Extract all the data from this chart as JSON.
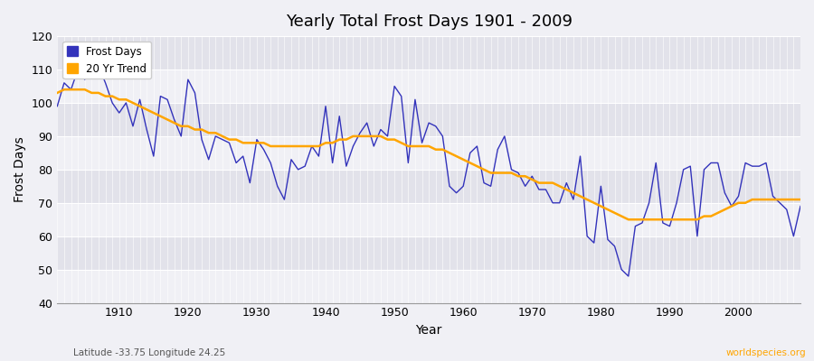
{
  "title": "Yearly Total Frost Days 1901 - 2009",
  "xlabel": "Year",
  "ylabel": "Frost Days",
  "ylim": [
    40,
    120
  ],
  "xlim": [
    1901,
    2009
  ],
  "yticks": [
    40,
    50,
    60,
    70,
    80,
    90,
    100,
    110,
    120
  ],
  "xticks": [
    1910,
    1920,
    1930,
    1940,
    1950,
    1960,
    1970,
    1980,
    1990,
    2000
  ],
  "line_color": "#3333bb",
  "trend_color": "#FFA500",
  "bg_color": "#f0f0f5",
  "band_color_dark": "#e2e2ea",
  "band_color_light": "#f0f0f5",
  "grid_color": "#ffffff",
  "subtitle_left": "Latitude -33.75 Longitude 24.25",
  "subtitle_right": "worldspecies.org",
  "legend_labels": [
    "Frost Days",
    "20 Yr Trend"
  ],
  "years": [
    1901,
    1902,
    1903,
    1904,
    1905,
    1906,
    1907,
    1908,
    1909,
    1910,
    1911,
    1912,
    1913,
    1914,
    1915,
    1916,
    1917,
    1918,
    1919,
    1920,
    1921,
    1922,
    1923,
    1924,
    1925,
    1926,
    1927,
    1928,
    1929,
    1930,
    1931,
    1932,
    1933,
    1934,
    1935,
    1936,
    1937,
    1938,
    1939,
    1940,
    1941,
    1942,
    1943,
    1944,
    1945,
    1946,
    1947,
    1948,
    1949,
    1950,
    1951,
    1952,
    1953,
    1954,
    1955,
    1956,
    1957,
    1958,
    1959,
    1960,
    1961,
    1962,
    1963,
    1964,
    1965,
    1966,
    1967,
    1968,
    1969,
    1970,
    1971,
    1972,
    1973,
    1974,
    1975,
    1976,
    1977,
    1978,
    1979,
    1980,
    1981,
    1982,
    1983,
    1984,
    1985,
    1986,
    1987,
    1988,
    1989,
    1990,
    1991,
    1992,
    1993,
    1994,
    1995,
    1996,
    1997,
    1998,
    1999,
    2000,
    2001,
    2002,
    2003,
    2004,
    2005,
    2006,
    2007,
    2008,
    2009
  ],
  "frost_days": [
    99,
    106,
    104,
    110,
    107,
    112,
    111,
    106,
    100,
    97,
    100,
    93,
    101,
    92,
    84,
    102,
    101,
    95,
    90,
    107,
    103,
    89,
    83,
    90,
    89,
    88,
    82,
    84,
    76,
    89,
    86,
    82,
    75,
    71,
    83,
    80,
    81,
    87,
    84,
    99,
    82,
    96,
    81,
    87,
    91,
    94,
    87,
    92,
    90,
    105,
    102,
    82,
    101,
    88,
    94,
    93,
    90,
    75,
    73,
    75,
    85,
    87,
    76,
    75,
    86,
    90,
    80,
    79,
    75,
    78,
    74,
    74,
    70,
    70,
    76,
    71,
    84,
    60,
    58,
    75,
    59,
    57,
    50,
    48,
    63,
    64,
    70,
    82,
    64,
    63,
    70,
    80,
    81,
    60,
    80,
    82,
    82,
    73,
    69,
    72,
    82,
    81,
    81,
    82,
    72,
    70,
    68,
    60,
    69
  ],
  "trend_years": [
    1901,
    1902,
    1903,
    1904,
    1905,
    1906,
    1907,
    1908,
    1909,
    1910,
    1911,
    1912,
    1913,
    1914,
    1915,
    1916,
    1917,
    1918,
    1919,
    1920,
    1921,
    1922,
    1923,
    1924,
    1925,
    1926,
    1927,
    1928,
    1929,
    1930,
    1931,
    1932,
    1933,
    1934,
    1935,
    1936,
    1937,
    1938,
    1939,
    1940,
    1941,
    1942,
    1943,
    1944,
    1945,
    1946,
    1947,
    1948,
    1949,
    1950,
    1951,
    1952,
    1953,
    1954,
    1955,
    1956,
    1957,
    1958,
    1959,
    1960,
    1961,
    1962,
    1963,
    1964,
    1965,
    1966,
    1967,
    1968,
    1969,
    1970,
    1971,
    1972,
    1973,
    1974,
    1975,
    1976,
    1977,
    1978,
    1979,
    1980,
    1981,
    1982,
    1983,
    1984,
    1985,
    1986,
    1987,
    1988,
    1989,
    1990,
    1991,
    1992,
    1993,
    1994,
    1995,
    1996,
    1997,
    1998,
    1999,
    2000,
    2001,
    2002,
    2003,
    2004,
    2005,
    2006,
    2007,
    2008,
    2009
  ],
  "trend_values": [
    103,
    104,
    104,
    104,
    104,
    103,
    103,
    102,
    102,
    101,
    101,
    100,
    99,
    98,
    97,
    96,
    95,
    94,
    93,
    93,
    92,
    92,
    91,
    91,
    90,
    89,
    89,
    88,
    88,
    88,
    88,
    87,
    87,
    87,
    87,
    87,
    87,
    87,
    87,
    88,
    88,
    89,
    89,
    90,
    90,
    90,
    90,
    90,
    89,
    89,
    88,
    87,
    87,
    87,
    87,
    86,
    86,
    85,
    84,
    83,
    82,
    81,
    80,
    79,
    79,
    79,
    79,
    78,
    78,
    77,
    76,
    76,
    76,
    75,
    74,
    73,
    72,
    71,
    70,
    69,
    68,
    67,
    66,
    65,
    65,
    65,
    65,
    65,
    65,
    65,
    65,
    65,
    65,
    65,
    66,
    66,
    67,
    68,
    69,
    70,
    70,
    71,
    71,
    71,
    71,
    71,
    71,
    71,
    71
  ]
}
